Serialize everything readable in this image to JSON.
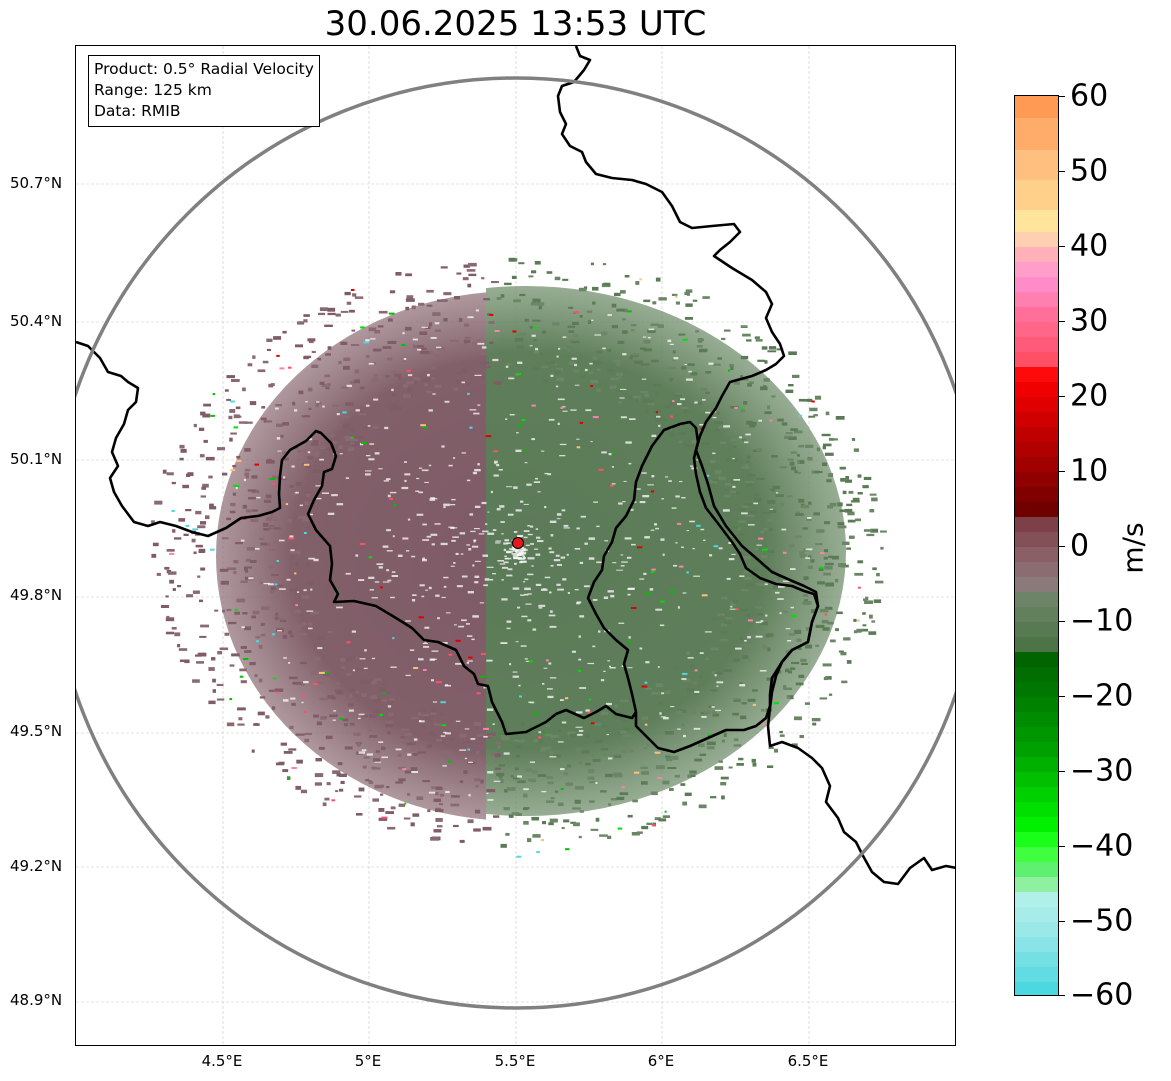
{
  "title": "30.06.2025 13:53 UTC",
  "info_box": {
    "product": "Product: 0.5° Radial Velocity",
    "range": "Range: 125 km",
    "data": "Data: RMIB"
  },
  "axes": {
    "lat_labels": [
      "50.7°N",
      "50.4°N",
      "50.1°N",
      "49.8°N",
      "49.5°N",
      "49.2°N",
      "48.9°N"
    ],
    "lon_labels": [
      "4.5°E",
      "5°E",
      "5.5°E",
      "6°E",
      "6.5°E"
    ]
  },
  "colorbar": {
    "unit": "m/s",
    "tick_labels": [
      "60",
      "50",
      "40",
      "30",
      "20",
      "10",
      "0",
      "−10",
      "−20",
      "−30",
      "−40",
      "−50",
      "−60"
    ],
    "range": [
      -60,
      60
    ]
  },
  "radar_site": {
    "lon": 5.505,
    "lat": 49.914
  },
  "colors": {
    "range_ring": "#808080",
    "border": "#000000",
    "site_marker": "#e41a1c",
    "outbound_velocity": "#7a5560",
    "inbound_velocity": "#5a7a55"
  }
}
